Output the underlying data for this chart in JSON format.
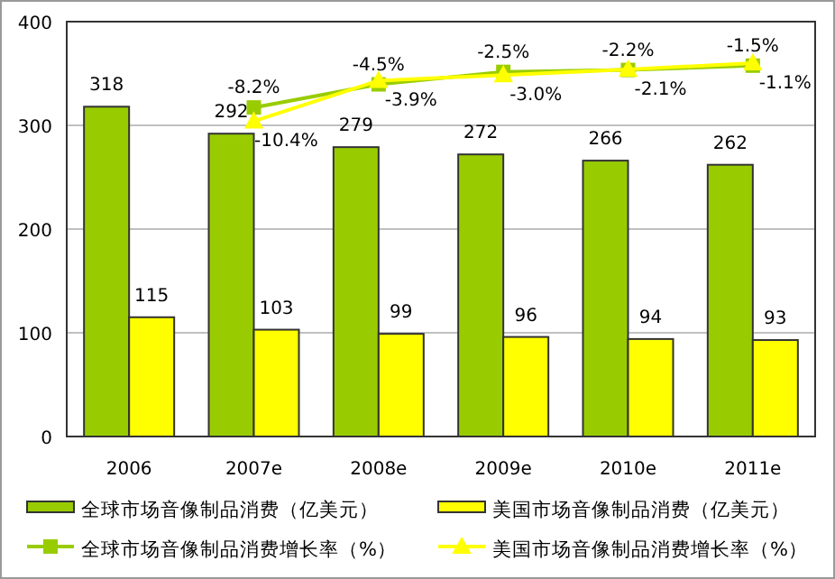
{
  "chart_data": {
    "type": "bar",
    "categories": [
      "2006",
      "2007e",
      "2008e",
      "2009e",
      "2010e",
      "2011e"
    ],
    "series": [
      {
        "name": "全球市场音像制品消费（亿美元）",
        "color": "#99cc00",
        "values": [
          318,
          292,
          279,
          272,
          266,
          262
        ]
      },
      {
        "name": "美国市场音像制品消费（亿美元）",
        "color": "#ffff00",
        "values": [
          115,
          103,
          99,
          96,
          94,
          93
        ]
      },
      {
        "name": "全球市场音像制品消费增长率（%）",
        "type": "line",
        "axis": "y2",
        "marker": "square",
        "color": "#99cc00",
        "values": [
          null,
          -8.2,
          -4.5,
          -2.5,
          -2.2,
          -1.5
        ],
        "value_labels": [
          null,
          "-8.2%",
          "-4.5%",
          "-2.5%",
          "-2.2%",
          "-1.5%"
        ]
      },
      {
        "name": "美国市场音像制品消费增长率（%）",
        "type": "line",
        "axis": "y2",
        "marker": "triangle",
        "color": "#ffff00",
        "values": [
          null,
          -10.4,
          -3.9,
          -3.0,
          -2.1,
          -1.1
        ],
        "value_labels": [
          null,
          "-10.4%",
          "-3.9%",
          "-3.0%",
          "-2.1%",
          "-1.1%"
        ]
      }
    ],
    "ylim": [
      0,
      400
    ],
    "yticks": [
      0,
      100,
      200,
      300,
      400
    ],
    "tick_labels": "x_y",
    "grid": "y",
    "legend": "bottom",
    "data_labels": true
  }
}
